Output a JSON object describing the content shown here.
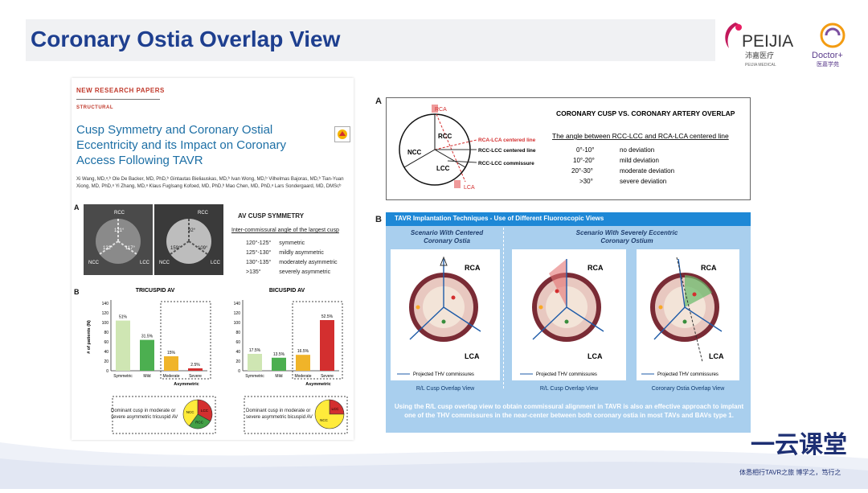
{
  "slide": {
    "title": "Coronary Ostia Overlap View",
    "logo_main": "PEIJIA",
    "logo_cn": "沛嘉医疗",
    "logo_sub": "PEIJIA MEDICAL",
    "logo_doctor": "Doctor+",
    "logo_doctor_cn": "医嘉学苑",
    "footer_brand": "一云课堂",
    "footer_tagline": "体悉相行TAVR之旅 博学之，笃行之"
  },
  "paper": {
    "kicker": "NEW RESEARCH PAPERS",
    "section": "STRUCTURAL",
    "title": "Cusp Symmetry and Coronary Ostial Eccentricity and its Impact on Coronary Access Following TAVR",
    "authors": "Xi Wang, MD,ᵃ,ᵇ Ole De Backer, MD, PhD,ᵇ Gintautas Bieliauskas, MD,ᵇ Ivan Wong, MD,ᵇ Vilhelmas Bajoras, MD,ᵇ Tian-Yuan Xiong, MD, PhD,ᵃ Yi Zhang, MD,ᵃ Klaus Fuglsang Kofoed, MD, PhD,ᵇ Mao Chen, MD, PhD,ᵃ Lars Sondergaard, MD, DMScᵇ",
    "panel_a_label": "A",
    "panel_b_label": "B",
    "ct_labels": {
      "rcc": "RCC",
      "ncc": "NCC",
      "lcc": "LCC",
      "a1": "121°",
      "a2": "122°",
      "a3": "117°",
      "b1": "92°",
      "b2": "159°",
      "b3": "109°"
    },
    "symmetry": {
      "heading": "AV CUSP SYMMETRY",
      "subheading": "Inter-commissural angle of the largest cusp",
      "rows": [
        {
          "range": "120°-125°",
          "label": "symmetric"
        },
        {
          "range": "125°-130°",
          "label": "mildly asymmetric"
        },
        {
          "range": "130°-135°",
          "label": "moderately asymmetric"
        },
        {
          "range": ">135°",
          "label": "severely asymmetric"
        }
      ]
    },
    "dominant_tricuspid": "Dominant cusp in moderate or severe asymmetric tricuspid AV",
    "dominant_bicuspid": "Dominant cusp in moderate or severe asymmetric bicuspid AV"
  },
  "chart_data": [
    {
      "type": "bar",
      "title": "TRICUSPID AV",
      "ylabel": "# of patients (N)",
      "xlabel": "Asymmetric",
      "ylim": [
        0,
        140
      ],
      "yticks": [
        0,
        20,
        40,
        60,
        80,
        100,
        120,
        140
      ],
      "categories": [
        "Symmetric",
        "Mild",
        "Moderate",
        "Severe"
      ],
      "values": [
        104,
        64,
        30,
        5
      ],
      "data_labels": [
        "51%",
        "31.5%",
        "15%",
        "2.5%"
      ],
      "colors": [
        "#cfe6b3",
        "#4caf50",
        "#f0b429",
        "#d32f2f"
      ],
      "pie": {
        "labels": [
          "LCC",
          "RCC",
          "NCC"
        ],
        "colors": [
          "#d32f2f",
          "#43a047",
          "#ffeb3b"
        ],
        "values": [
          33,
          27,
          40
        ]
      }
    },
    {
      "type": "bar",
      "title": "BICUSPID AV",
      "ylabel": "",
      "xlabel": "Asymmetric",
      "ylim": [
        0,
        140
      ],
      "yticks": [
        0,
        20,
        40,
        60,
        80,
        100,
        120,
        140
      ],
      "categories": [
        "Symmetric",
        "Mild",
        "Moderate",
        "Severe"
      ],
      "values": [
        35,
        27,
        33,
        105
      ],
      "data_labels": [
        "17.5%",
        "13.5%",
        "16.5%",
        "52.5%"
      ],
      "colors": [
        "#cfe6b3",
        "#4caf50",
        "#f0b429",
        "#d32f2f"
      ],
      "pie": {
        "labels": [
          "LCC",
          "NCC"
        ],
        "colors": [
          "#d32f2f",
          "#ffeb3b"
        ],
        "values": [
          25,
          75
        ]
      }
    }
  ],
  "panelA": {
    "label": "A",
    "heading": "CORONARY CUSP VS. CORONARY ARTERY OVERLAP",
    "subheading": "The angle between RCC-LCC and RCA-LCA centered line",
    "diagram": {
      "rca": "RCA",
      "lca": "LCA",
      "rcc": "RCC",
      "ncc": "NCC",
      "lcc": "LCC",
      "line1": "RCA-LCA centered line",
      "line2": "RCC-LCC centered line",
      "line3": "RCC-LCC commissure"
    },
    "rows": [
      {
        "range": "0°-10°",
        "label": "no deviation"
      },
      {
        "range": "10°-20°",
        "label": "mild deviation"
      },
      {
        "range": "20°-30°",
        "label": "moderate deviation"
      },
      {
        "range": ">30°",
        "label": "severe deviation"
      }
    ]
  },
  "panelB": {
    "label": "B",
    "header": "TAVR Implantation Techniques - Use of Different Fluoroscopic Views",
    "scenario1": "Scenario With Centered Coronary Ostia",
    "scenario2": "Scenario With Severely Eccentric Coronary Ostium",
    "views": [
      {
        "rca": "RCA",
        "lca": "LCA",
        "legend": "Projected THV commissures",
        "caption": "R/L Cusp Overlap View"
      },
      {
        "rca": "RCA",
        "lca": "LCA",
        "legend": "Projected THV commissures",
        "caption": "R/L Cusp Overlap View"
      },
      {
        "rca": "RCA",
        "lca": "LCA",
        "legend": "Projected THV commissures",
        "caption": "Coronary Ostia Overlap View"
      }
    ],
    "bottom_text": "Using the R/L cusp overlap view to obtain commissural alignment in TAVR is also an effective approach to implant one of the THV commissures in the near-center between both coronary ostia in most TAVs and BAVs type 1."
  }
}
